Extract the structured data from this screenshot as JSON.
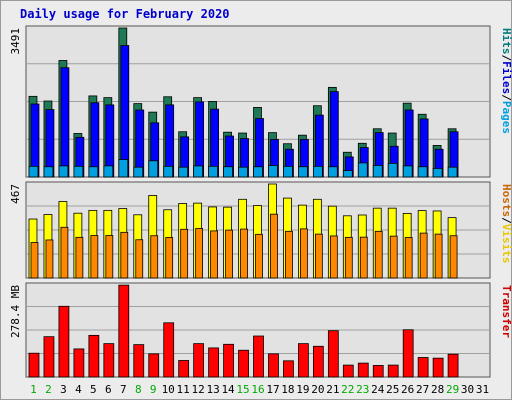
{
  "title": "Daily usage for February 2020",
  "chart_data": {
    "type": "bar",
    "days": [
      "1",
      "2",
      "3",
      "4",
      "5",
      "6",
      "7",
      "8",
      "9",
      "10",
      "11",
      "12",
      "13",
      "14",
      "15",
      "16",
      "17",
      "18",
      "19",
      "20",
      "21",
      "22",
      "23",
      "24",
      "25",
      "26",
      "27",
      "28",
      "29",
      "30",
      "31"
    ],
    "weekend_days": [
      "1",
      "2",
      "8",
      "9",
      "15",
      "16",
      "22",
      "23",
      "29"
    ],
    "panels": [
      {
        "id": "hits",
        "ymax_label": "3491",
        "ymax": 3491,
        "series": [
          {
            "name": "Hits",
            "color": "#1e7a55",
            "values": [
              1890,
              1780,
              2730,
              1020,
              1900,
              1860,
              3491,
              1720,
              1520,
              1880,
              1060,
              1860,
              1770,
              1050,
              1030,
              1630,
              1040,
              780,
              980,
              1670,
              2100,
              580,
              790,
              1130,
              1030,
              1730,
              1470,
              740,
              1130
            ]
          },
          {
            "name": "Files",
            "color": "#0000ff",
            "values": [
              1710,
              1580,
              2560,
              930,
              1740,
              1690,
              3080,
              1570,
              1270,
              1690,
              940,
              1760,
              1590,
              960,
              900,
              1370,
              880,
              650,
              880,
              1450,
              2000,
              470,
              690,
              1040,
              720,
              1570,
              1360,
              650,
              1060
            ]
          },
          {
            "name": "Pages",
            "color": "#00a0e0",
            "values": [
              250,
              240,
              260,
              250,
              240,
              260,
              410,
              230,
              380,
              250,
              230,
              260,
              250,
              240,
              230,
              240,
              270,
              250,
              240,
              250,
              240,
              150,
              330,
              270,
              320,
              260,
              240,
              200,
              230
            ]
          }
        ],
        "right_label": [
          {
            "text": "Hits",
            "color": "#007c7c"
          },
          {
            "text": "/",
            "color": "#000000"
          },
          {
            "text": "Files",
            "color": "#0000cc"
          },
          {
            "text": "/",
            "color": "#000000"
          },
          {
            "text": "Pages",
            "color": "#00a0e0"
          }
        ]
      },
      {
        "id": "visits",
        "ymax_label": "467",
        "ymax": 467,
        "series": [
          {
            "name": "Visits",
            "color": "#ffff00",
            "values": [
              293,
              315,
              380,
              322,
              336,
              336,
              345,
              314,
              410,
              339,
              370,
              372,
              353,
              352,
              391,
              360,
              467,
              397,
              362,
              391,
              357,
              309,
              313,
              347,
              347,
              321,
              335,
              333,
              300
            ]
          },
          {
            "name": "Hosts",
            "color": "#ff8800",
            "values": [
              176,
              189,
              252,
              202,
              211,
              211,
              227,
              190,
              210,
              201,
              242,
              246,
              234,
              238,
              243,
              217,
              317,
              232,
              244,
              218,
              209,
              202,
              203,
              232,
              208,
              201,
              223,
              218,
              210
            ]
          }
        ],
        "right_label": [
          {
            "text": "Hosts",
            "color": "#cc6600"
          },
          {
            "text": "/",
            "color": "#000000"
          },
          {
            "text": "Visits",
            "color": "#e8c800"
          }
        ]
      },
      {
        "id": "transfer",
        "ymax_label": "278.4 MB",
        "ymax": 278.4,
        "series": [
          {
            "name": "Transfer",
            "color": "#ff0000",
            "values": [
              72,
              122,
              214,
              85,
              126,
              101,
              278,
              98,
              70,
              164,
              50,
              101,
              88,
              99,
              81,
              124,
              70,
              49,
              101,
              93,
              140,
              36,
              42,
              35,
              36,
              143,
              59,
              57,
              69
            ]
          }
        ],
        "right_label": [
          {
            "text": "Transfer",
            "color": "#cc0000"
          }
        ]
      }
    ]
  }
}
